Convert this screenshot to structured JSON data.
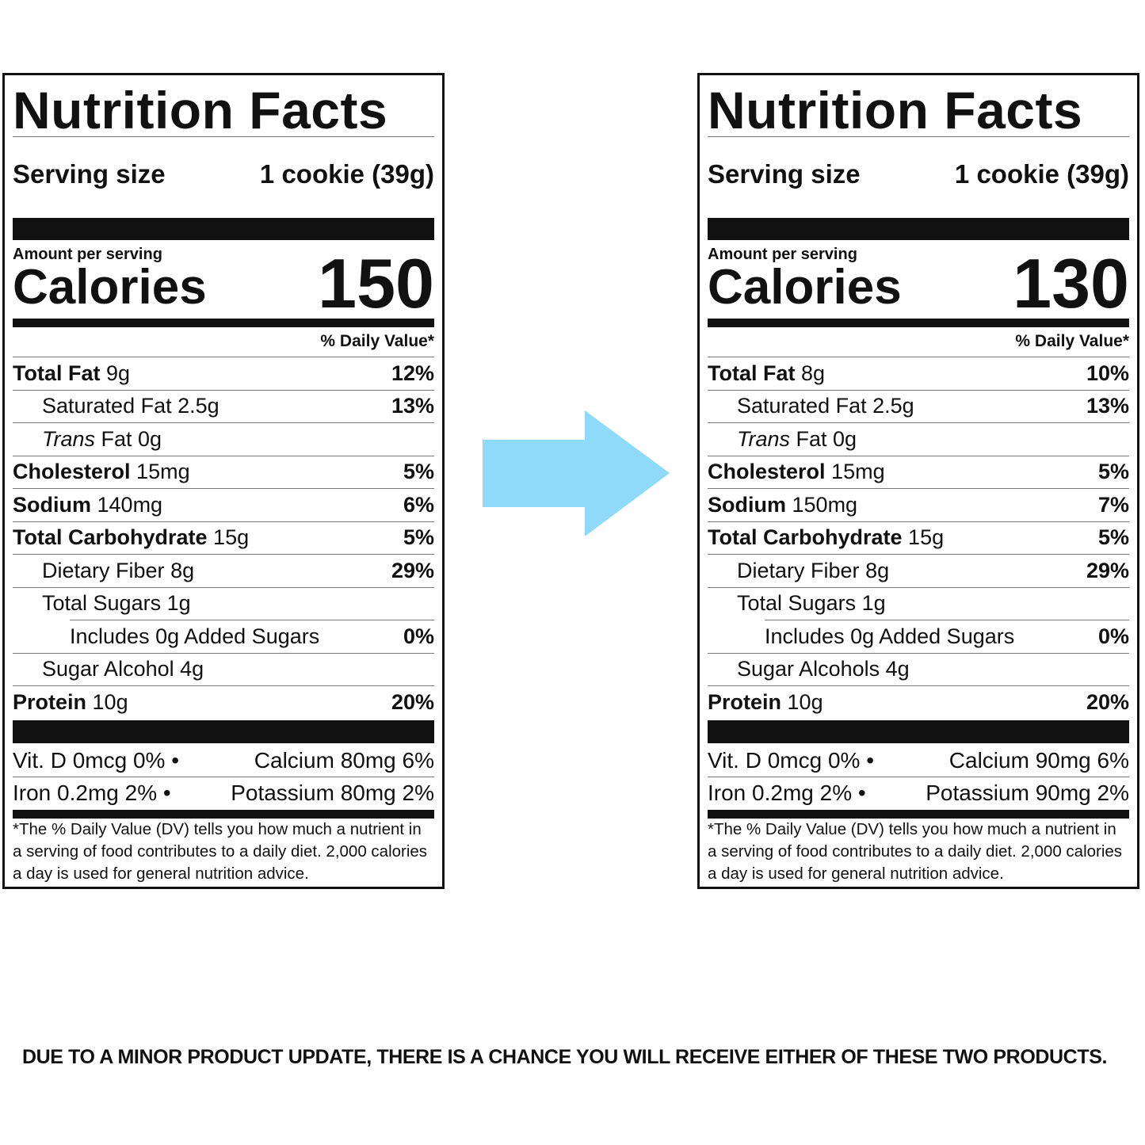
{
  "labels": [
    {
      "title": "Nutrition Facts",
      "serving_label": "Serving size",
      "serving_value": "1 cookie (39g)",
      "amount_per_serving": "Amount per serving",
      "calories_label": "Calories",
      "calories": "150",
      "dv_header": "% Daily Value*",
      "rows": [
        {
          "name": "Total Fat",
          "amount": "9g",
          "dv": "12%",
          "bold": true,
          "indent": 0
        },
        {
          "name": "Saturated Fat",
          "amount": "2.5g",
          "dv": "13%",
          "bold": false,
          "indent": 1
        },
        {
          "name": "Trans",
          "suffix": "Fat 0g",
          "amount": "",
          "dv": "",
          "bold": false,
          "indent": 1,
          "italic": true
        },
        {
          "name": "Cholesterol",
          "amount": "15mg",
          "dv": "5%",
          "bold": true,
          "indent": 0
        },
        {
          "name": "Sodium",
          "amount": "140mg",
          "dv": "6%",
          "bold": true,
          "indent": 0
        },
        {
          "name": "Total Carbohydrate",
          "amount": "15g",
          "dv": "5%",
          "bold": true,
          "indent": 0
        },
        {
          "name": "Dietary Fiber",
          "amount": "8g",
          "dv": "29%",
          "bold": false,
          "indent": 1
        },
        {
          "name": "Total Sugars",
          "amount": "1g",
          "dv": "",
          "bold": false,
          "indent": 1
        },
        {
          "name": "Includes 0g Added Sugars",
          "amount": "",
          "dv": "0%",
          "bold": false,
          "indent": 2
        },
        {
          "name": "Sugar Alcohol",
          "amount": "4g",
          "dv": "",
          "bold": false,
          "indent": 1
        },
        {
          "name": "Protein",
          "amount": "10g",
          "dv": "20%",
          "bold": true,
          "indent": 0
        }
      ],
      "vitamins": [
        {
          "left": "Vit. D 0mcg 0%  •",
          "right": "Calcium 80mg 6%"
        },
        {
          "left": "Iron 0.2mg 2%  •",
          "right": "Potassium 80mg 2%"
        }
      ],
      "footnote": "*The % Daily Value (DV) tells you how much a nutrient in a serving of food contributes to a daily diet. 2,000 calories a day is used for general nutrition advice."
    },
    {
      "title": "Nutrition Facts",
      "serving_label": "Serving size",
      "serving_value": "1 cookie (39g)",
      "amount_per_serving": "Amount per serving",
      "calories_label": "Calories",
      "calories": "130",
      "dv_header": "% Daily Value*",
      "rows": [
        {
          "name": "Total Fat",
          "amount": "8g",
          "dv": "10%",
          "bold": true,
          "indent": 0
        },
        {
          "name": "Saturated Fat",
          "amount": "2.5g",
          "dv": "13%",
          "bold": false,
          "indent": 1
        },
        {
          "name": "Trans",
          "suffix": "Fat 0g",
          "amount": "",
          "dv": "",
          "bold": false,
          "indent": 1,
          "italic": true
        },
        {
          "name": "Cholesterol",
          "amount": "15mg",
          "dv": "5%",
          "bold": true,
          "indent": 0
        },
        {
          "name": "Sodium",
          "amount": "150mg",
          "dv": "7%",
          "bold": true,
          "indent": 0
        },
        {
          "name": "Total Carbohydrate",
          "amount": "15g",
          "dv": "5%",
          "bold": true,
          "indent": 0
        },
        {
          "name": "Dietary Fiber",
          "amount": "8g",
          "dv": "29%",
          "bold": false,
          "indent": 1
        },
        {
          "name": "Total Sugars",
          "amount": "1g",
          "dv": "",
          "bold": false,
          "indent": 1
        },
        {
          "name": "Includes 0g Added Sugars",
          "amount": "",
          "dv": "0%",
          "bold": false,
          "indent": 2
        },
        {
          "name": "Sugar Alcohols",
          "amount": "4g",
          "dv": "",
          "bold": false,
          "indent": 1
        },
        {
          "name": "Protein",
          "amount": "10g",
          "dv": "20%",
          "bold": true,
          "indent": 0
        }
      ],
      "vitamins": [
        {
          "left": "Vit. D 0mcg 0%  •",
          "right": "Calcium 90mg 6%"
        },
        {
          "left": "Iron 0.2mg 2%  •",
          "right": "Potassium 90mg 2%"
        }
      ],
      "footnote": "*The % Daily Value (DV) tells you how much a nutrient in a serving of food contributes to a daily diet. 2,000 calories a day is used for general nutrition advice."
    }
  ],
  "arrow": {
    "icon": "right-arrow-icon",
    "color": "#8fd9f9"
  },
  "notice": "DUE TO A MINOR PRODUCT UPDATE, THERE IS A CHANCE YOU WILL RECEIVE EITHER OF THESE TWO PRODUCTS."
}
